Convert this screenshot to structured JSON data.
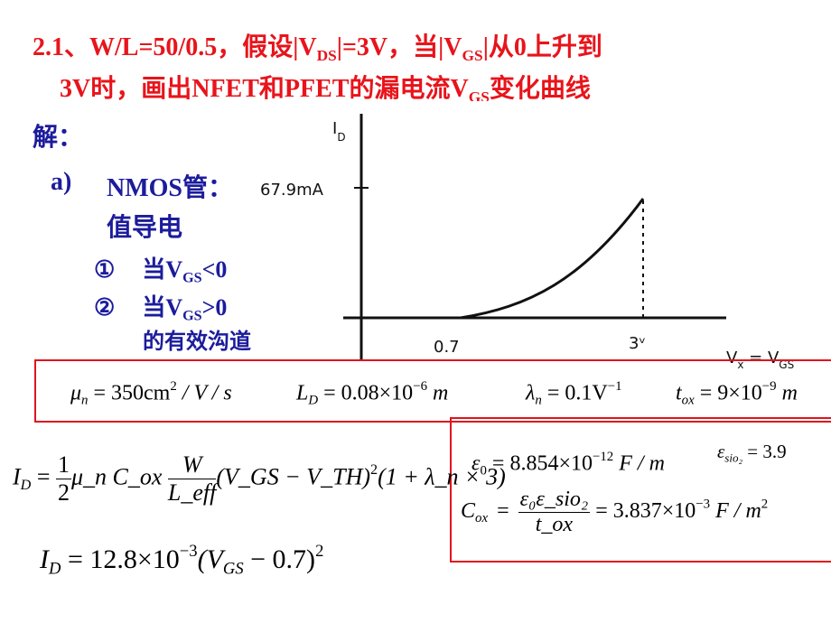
{
  "title": {
    "line1": [
      "2.1、W/L=50/0.5，假设|V",
      "DS",
      "|=3V，当|V",
      "GS",
      "|从0上升到"
    ],
    "line2": [
      "3V时，画出NFET和PFET的漏电流V",
      "GS",
      "变化曲线"
    ]
  },
  "solution_label": "解：",
  "item_a": {
    "marker": "a)",
    "text1": "NMOS管：",
    "text2": "值导电"
  },
  "case1": [
    "①",
    "当V",
    "GS",
    "<0"
  ],
  "case2": [
    "②",
    "当V",
    "GS",
    ">0"
  ],
  "case2_cont": "的有效沟道",
  "sketch": {
    "y_label": [
      "I",
      "D"
    ],
    "peak": "67.9mA",
    "x1": "0.7",
    "x2": "3ᵛ",
    "x_label": [
      "V",
      "x",
      " = V",
      "GS"
    ]
  },
  "params": [
    [
      "μ",
      "n",
      " = 350cm",
      "2",
      " / V / s"
    ],
    [
      "L",
      "D",
      " = 0.08×10",
      "−6",
      " m"
    ],
    [
      "λ",
      "n",
      " = 0.1V",
      "−1"
    ],
    [
      "t",
      "ox",
      " = 9×10",
      "−9",
      " m"
    ]
  ],
  "constants": {
    "eps0": [
      "ε",
      "0",
      " = 8.854×10",
      "−12",
      " F / m"
    ],
    "epssio2": [
      "ε",
      "sio₂",
      " = 3.9"
    ],
    "cox": [
      "C",
      "ox",
      "=",
      "ε₀ε_sio₂",
      "t_ox",
      " = 3.837×10",
      "−3",
      " F / m",
      "2"
    ]
  },
  "formula1": [
    "I",
    "D",
    " = ",
    "1",
    "2",
    "μ_n C_ox ",
    "W",
    "L_eff",
    "(V_GS − V_TH)",
    "2",
    "(1 + λ_n × 3)"
  ],
  "formula2": [
    "I",
    "D",
    " = 12.8×10",
    "−3",
    "(V",
    "GS",
    " − 0.7)",
    "2"
  ]
}
